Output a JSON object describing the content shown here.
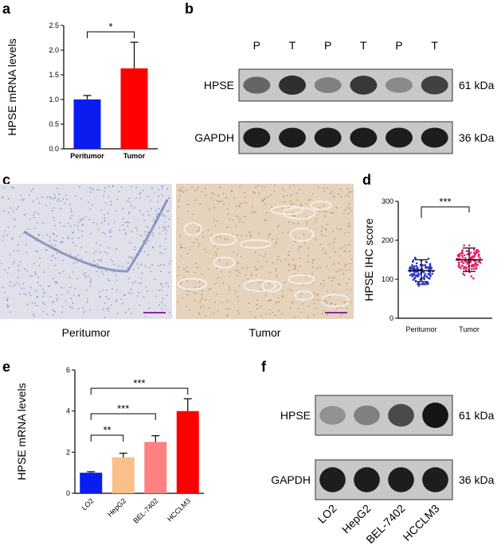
{
  "panel_labels": [
    "a",
    "b",
    "c",
    "d",
    "e",
    "f"
  ],
  "colors": {
    "blue": "#0a1cf0",
    "red": "#ff0000",
    "peach": "#f9c08a",
    "salmon": "#ff8080",
    "pink_dots": "#e8206a",
    "blue_dots": "#2a34c8"
  },
  "chart_data": [
    {
      "panel": "a",
      "type": "bar",
      "ylabel": "HPSE mRNA levels",
      "ylim": [
        0,
        2.5
      ],
      "yticks": [
        "0.0",
        "0.5",
        "1.0",
        "1.5",
        "2.0",
        "2.5"
      ],
      "categories": [
        "Peritumor",
        "Tumor"
      ],
      "values": [
        1.0,
        1.63
      ],
      "errors": [
        0.08,
        0.53
      ],
      "bar_colors": [
        "#0a1cf0",
        "#ff0000"
      ],
      "significance": [
        {
          "from": 0,
          "to": 1,
          "label": "*"
        }
      ]
    },
    {
      "panel": "d",
      "type": "scatter",
      "ylabel": "HPSE IHC score",
      "ylim": [
        0,
        300
      ],
      "yticks": [
        "0",
        "100",
        "200",
        "300"
      ],
      "categories": [
        "Peritumor",
        "Tumor"
      ],
      "mean": [
        122,
        150
      ],
      "sd": [
        28,
        30
      ],
      "point_colors": [
        "#2a34c8",
        "#e8206a"
      ],
      "significance": [
        {
          "from": 0,
          "to": 1,
          "label": "***"
        }
      ]
    },
    {
      "panel": "e",
      "type": "bar",
      "ylabel": "HPSE mRNA levels",
      "ylim": [
        0,
        6
      ],
      "yticks": [
        "0",
        "2",
        "4",
        "6"
      ],
      "categories": [
        "LO2",
        "HepG2",
        "BEL-7402",
        "HCCLM3"
      ],
      "values": [
        1.0,
        1.75,
        2.5,
        4.0
      ],
      "errors": [
        0.05,
        0.2,
        0.3,
        0.6
      ],
      "bar_colors": [
        "#0a1cf0",
        "#f9c08a",
        "#ff8080",
        "#ff0000"
      ],
      "significance": [
        {
          "from": 0,
          "to": 1,
          "label": "**"
        },
        {
          "from": 0,
          "to": 2,
          "label": "***"
        },
        {
          "from": 0,
          "to": 3,
          "label": "***"
        }
      ]
    }
  ],
  "blot_b": {
    "lanes": [
      "P",
      "T",
      "P",
      "T",
      "P",
      "T"
    ],
    "rows": [
      {
        "name": "HPSE",
        "kda": "61 kDa",
        "intensity": [
          0.55,
          0.85,
          0.4,
          0.8,
          0.35,
          0.75
        ]
      },
      {
        "name": "GAPDH",
        "kda": "36 kDa",
        "intensity": [
          0.95,
          0.95,
          0.95,
          0.95,
          0.95,
          0.95
        ]
      }
    ]
  },
  "micro_c": {
    "captions": [
      "Peritumor",
      "Tumor"
    ],
    "tints": [
      "#dfe0ea",
      "#e6d3bd"
    ]
  },
  "blot_f": {
    "lanes": [
      "LO2",
      "HepG2",
      "BEL-7402",
      "HCCLM3"
    ],
    "rows": [
      {
        "name": "HPSE",
        "kda": "61 kDa",
        "intensity": [
          0.3,
          0.4,
          0.7,
          1.0
        ]
      },
      {
        "name": "GAPDH",
        "kda": "36 kDa",
        "intensity": [
          0.95,
          0.95,
          0.95,
          0.95
        ]
      }
    ]
  }
}
